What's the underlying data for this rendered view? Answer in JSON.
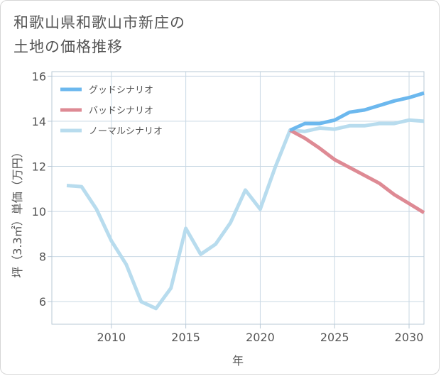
{
  "title_lines": [
    "和歌山県和歌山市新庄の",
    "土地の価格推移"
  ],
  "chart_data": {
    "type": "line",
    "xlabel": "年",
    "ylabel": "坪（3.3㎡）単価（万円）",
    "xlim": [
      2006,
      2031
    ],
    "ylim": [
      5,
      16.2
    ],
    "x_ticks": [
      2010,
      2015,
      2020,
      2025,
      2030
    ],
    "y_ticks": [
      6,
      8,
      10,
      12,
      14,
      16
    ],
    "grid": true,
    "legend_position": "top-left",
    "series": [
      {
        "name": "グッドシナリオ",
        "color": "#6cb8ee",
        "x": [
          2022,
          2023,
          2024,
          2025,
          2026,
          2027,
          2028,
          2029,
          2030,
          2031
        ],
        "values": [
          13.6,
          13.9,
          13.9,
          14.05,
          14.4,
          14.5,
          14.7,
          14.9,
          15.05,
          15.25
        ]
      },
      {
        "name": "バッドシナリオ",
        "color": "#de8a94",
        "x": [
          2022,
          2023,
          2024,
          2025,
          2026,
          2027,
          2028,
          2029,
          2030,
          2031
        ],
        "values": [
          13.6,
          13.25,
          12.8,
          12.3,
          11.95,
          11.6,
          11.25,
          10.75,
          10.35,
          9.95
        ]
      },
      {
        "name": "ノーマルシナリオ",
        "color": "#b8dcee",
        "x": [
          2007,
          2008,
          2009,
          2010,
          2011,
          2012,
          2013,
          2014,
          2015,
          2016,
          2017,
          2018,
          2019,
          2020,
          2021,
          2022,
          2023,
          2024,
          2025,
          2026,
          2027,
          2028,
          2029,
          2030,
          2031
        ],
        "values": [
          11.15,
          11.1,
          10.1,
          8.7,
          7.65,
          6.0,
          5.7,
          6.6,
          9.25,
          8.1,
          8.55,
          9.5,
          10.95,
          10.1,
          11.95,
          13.6,
          13.55,
          13.7,
          13.65,
          13.8,
          13.8,
          13.9,
          13.9,
          14.05,
          14.0
        ]
      }
    ]
  }
}
